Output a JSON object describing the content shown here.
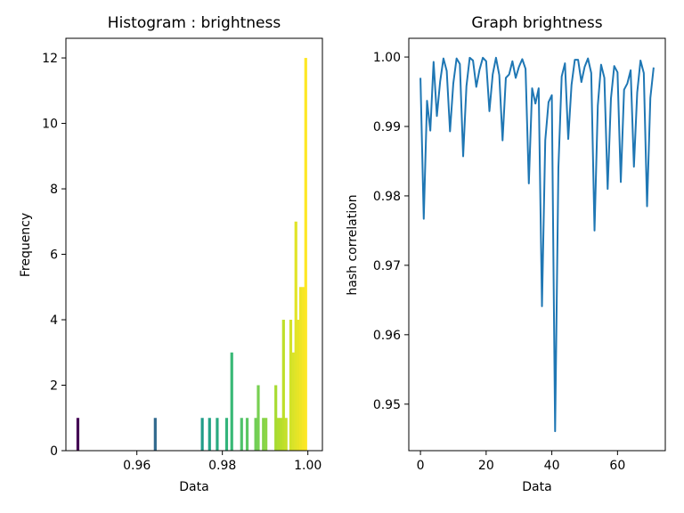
{
  "chart_data": [
    {
      "type": "bar",
      "title": "Histogram : brightness",
      "xlabel": "Data",
      "ylabel": "Frequency",
      "xlim": [
        0.9434,
        1.0034
      ],
      "ylim": [
        0,
        12.6
      ],
      "xticks": [
        0.96,
        0.98,
        1.0
      ],
      "xtick_labels": [
        "0.96",
        "0.98",
        "1.00"
      ],
      "yticks": [
        0,
        2,
        4,
        6,
        8,
        10,
        12
      ],
      "ytick_labels": [
        "0",
        "2",
        "4",
        "6",
        "8",
        "10",
        "12"
      ],
      "colormap": "viridis",
      "bars": [
        {
          "x": 0.9462,
          "value": 1
        },
        {
          "x": 0.9643,
          "value": 1
        },
        {
          "x": 0.9753,
          "value": 1
        },
        {
          "x": 0.977,
          "value": 1
        },
        {
          "x": 0.9788,
          "value": 1
        },
        {
          "x": 0.981,
          "value": 1
        },
        {
          "x": 0.9822,
          "value": 3
        },
        {
          "x": 0.9845,
          "value": 1
        },
        {
          "x": 0.9858,
          "value": 1
        },
        {
          "x": 0.9878,
          "value": 1
        },
        {
          "x": 0.9884,
          "value": 2
        },
        {
          "x": 0.9896,
          "value": 1
        },
        {
          "x": 0.9902,
          "value": 1
        },
        {
          "x": 0.9925,
          "value": 2
        },
        {
          "x": 0.9931,
          "value": 1
        },
        {
          "x": 0.9937,
          "value": 1
        },
        {
          "x": 0.9943,
          "value": 4
        },
        {
          "x": 0.9949,
          "value": 1
        },
        {
          "x": 0.996,
          "value": 4
        },
        {
          "x": 0.9966,
          "value": 3
        },
        {
          "x": 0.9972,
          "value": 7
        },
        {
          "x": 0.9977,
          "value": 4
        },
        {
          "x": 0.9983,
          "value": 5
        },
        {
          "x": 0.9989,
          "value": 5
        },
        {
          "x": 0.9995,
          "value": 12
        }
      ]
    },
    {
      "type": "line",
      "title": "Graph brightness",
      "xlabel": "Data",
      "ylabel": "hash correlation",
      "xlim": [
        -3.55,
        74.55
      ],
      "ylim": [
        0.9433,
        1.0027
      ],
      "xticks": [
        0,
        20,
        40,
        60
      ],
      "xtick_labels": [
        "0",
        "20",
        "40",
        "60"
      ],
      "yticks": [
        0.95,
        0.96,
        0.97,
        0.98,
        0.99,
        1.0
      ],
      "ytick_labels": [
        "0.95",
        "0.96",
        "0.97",
        "0.98",
        "0.99",
        "1.00"
      ],
      "line_color": "#1f77b4",
      "y": [
        0.997,
        0.9767,
        0.9937,
        0.9894,
        0.9993,
        0.9915,
        0.9965,
        0.9998,
        0.998,
        0.9893,
        0.9962,
        0.9998,
        0.999,
        0.9857,
        0.9958,
        0.9999,
        0.9995,
        0.9957,
        0.9982,
        0.9999,
        0.9994,
        0.9922,
        0.9975,
        0.9999,
        0.9974,
        0.988,
        0.997,
        0.9975,
        0.9994,
        0.997,
        0.9986,
        0.9997,
        0.9983,
        0.9818,
        0.9955,
        0.9933,
        0.9955,
        0.9641,
        0.988,
        0.9935,
        0.9945,
        0.9461,
        0.984,
        0.9972,
        0.9991,
        0.9882,
        0.996,
        0.9996,
        0.9996,
        0.9964,
        0.9986,
        0.9998,
        0.9977,
        0.975,
        0.993,
        0.9989,
        0.997,
        0.981,
        0.994,
        0.9987,
        0.9978,
        0.982,
        0.9953,
        0.9962,
        0.9981,
        0.9842,
        0.9949,
        0.9995,
        0.9977,
        0.9785,
        0.9941,
        0.9985
      ]
    }
  ]
}
